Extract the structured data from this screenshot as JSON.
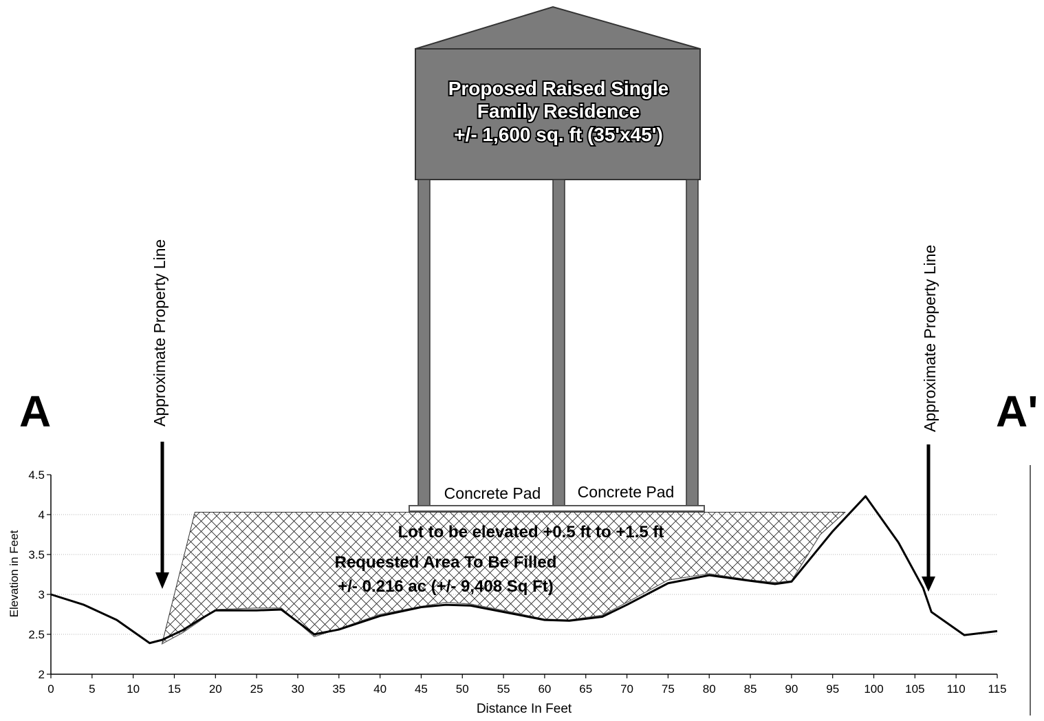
{
  "section_marks": {
    "left": "A",
    "right": "A'"
  },
  "property_line_labels": [
    "Approximate Property Line",
    "Approximate Property Line"
  ],
  "house": {
    "label_lines": [
      "Proposed Raised Single",
      "Family Residence",
      "+/- 1,600 sq. ft (35'x45')"
    ]
  },
  "pads": [
    "Concrete Pad",
    "Concrete Pad"
  ],
  "fill_labels": {
    "elevated": "Lot to be elevated +0.5 ft to +1.5 ft",
    "requested_line1": "Requested Area To Be Filled",
    "requested_line2": "+/- 0.216 ac (+/- 9,408 Sq Ft)"
  },
  "colors": {
    "house": "#7b7b7b",
    "ground": "#000000",
    "grid": "#9a9a9a"
  },
  "chart_data": {
    "type": "line",
    "xlabel": "Distance In Feet",
    "ylabel": "Elevation in Feet",
    "xlim": [
      0,
      115
    ],
    "ylim": [
      2,
      4.5
    ],
    "x_ticks": [
      0,
      5,
      10,
      15,
      20,
      25,
      30,
      35,
      40,
      45,
      50,
      55,
      60,
      65,
      70,
      75,
      80,
      85,
      90,
      95,
      100,
      105,
      110,
      115
    ],
    "y_ticks": [
      2,
      2.5,
      3,
      3.5,
      4,
      4.5
    ],
    "y_tick_labels": [
      "2",
      "2.5",
      "3",
      "3.5",
      "4",
      "4.5"
    ],
    "grid": true,
    "series": [
      {
        "x": [
          0,
          4,
          8,
          12,
          13.5,
          16,
          18,
          20,
          25,
          28,
          32,
          35,
          40,
          45,
          48,
          51,
          55,
          60,
          63,
          67,
          70,
          75,
          80,
          85,
          88,
          90,
          95,
          99,
          103,
          106,
          107,
          111,
          115
        ],
        "y": [
          3.0,
          2.87,
          2.68,
          2.39,
          2.43,
          2.55,
          2.68,
          2.8,
          2.8,
          2.81,
          2.5,
          2.56,
          2.73,
          2.84,
          2.87,
          2.86,
          2.78,
          2.68,
          2.67,
          2.72,
          2.87,
          3.14,
          3.24,
          3.17,
          3.13,
          3.16,
          3.79,
          4.23,
          3.65,
          3.08,
          2.78,
          2.49,
          2.54
        ]
      }
    ],
    "fill_region": {
      "top_elevation": 4.03,
      "top_x_range": [
        17.5,
        96.5
      ],
      "bottom_x": [
        13.5,
        16,
        18,
        20,
        25,
        28,
        32,
        35,
        40,
        45,
        48,
        51,
        55,
        60,
        63,
        67,
        70,
        75,
        80,
        85,
        88,
        90,
        93.5
      ],
      "bottom_y": [
        2.38,
        2.52,
        2.66,
        2.81,
        2.83,
        2.83,
        2.47,
        2.57,
        2.75,
        2.85,
        2.9,
        2.88,
        2.8,
        2.69,
        2.68,
        2.74,
        2.9,
        3.18,
        3.26,
        3.18,
        3.15,
        3.17,
        3.75
      ]
    },
    "property_lines_x": [
      13.5,
      106.5
    ],
    "pad_elevation": 4.06,
    "pad_x_range": [
      43.5,
      79.5
    ]
  }
}
